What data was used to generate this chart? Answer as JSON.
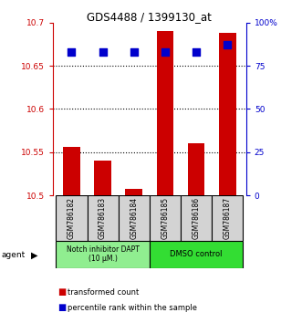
{
  "title": "GDS4488 / 1399130_at",
  "samples": [
    "GSM786182",
    "GSM786183",
    "GSM786184",
    "GSM786185",
    "GSM786186",
    "GSM786187"
  ],
  "red_values": [
    10.556,
    10.54,
    10.508,
    10.69,
    10.56,
    10.688
  ],
  "blue_values": [
    83,
    83,
    83,
    83,
    83,
    87
  ],
  "ylim_left": [
    10.5,
    10.7
  ],
  "ylim_right": [
    0,
    100
  ],
  "yticks_left": [
    10.5,
    10.55,
    10.6,
    10.65,
    10.7
  ],
  "ytick_labels_left": [
    "10.5",
    "10.55",
    "10.6",
    "10.65",
    "10.7"
  ],
  "yticks_right": [
    0,
    25,
    50,
    75,
    100
  ],
  "ytick_labels_right": [
    "0",
    "25",
    "50",
    "75",
    "100%"
  ],
  "hlines": [
    10.55,
    10.6,
    10.65
  ],
  "group1_label": "Notch inhibitor DAPT\n(10 μM.)",
  "group2_label": "DMSO control",
  "group1_color": "#90EE90",
  "group2_color": "#33DD33",
  "bar_color": "#CC0000",
  "dot_color": "#0000CC",
  "bar_width": 0.55,
  "left_axis_color": "#CC0000",
  "right_axis_color": "#0000CC",
  "legend_red_label": "transformed count",
  "legend_blue_label": "percentile rank within the sample",
  "agent_label": "agent"
}
